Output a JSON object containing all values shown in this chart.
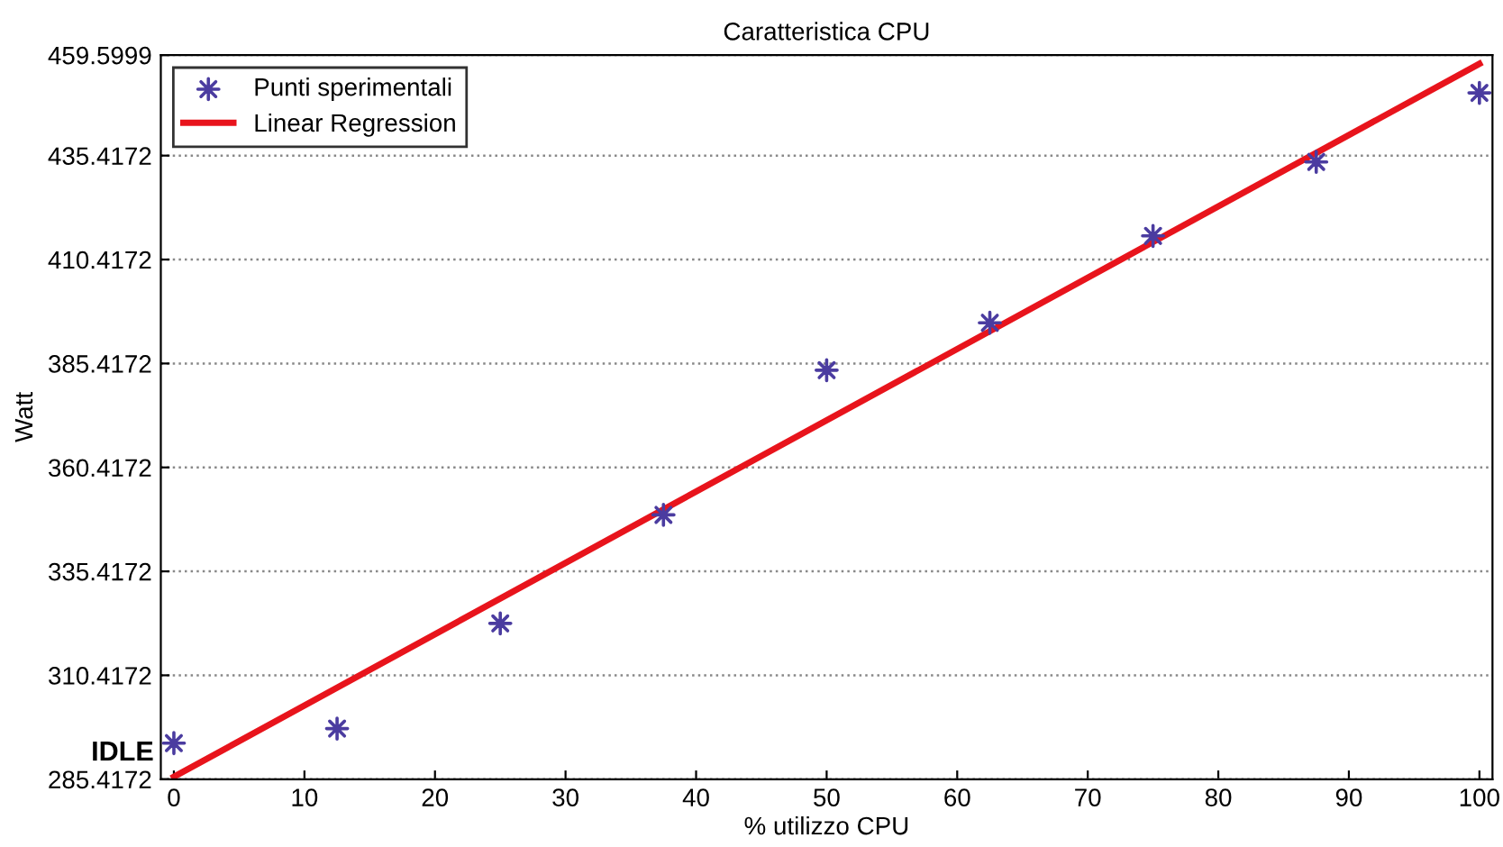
{
  "chart_data": {
    "type": "scatter",
    "title": "Caratteristica CPU",
    "xlabel": "% utilizzo CPU",
    "ylabel": "Watt",
    "xlim": [
      -1,
      101
    ],
    "xticks": [
      0,
      10,
      20,
      30,
      40,
      50,
      60,
      70,
      80,
      90,
      100
    ],
    "ylim": [
      285.4172,
      459.5999
    ],
    "yticks": [
      285.4172,
      310.4172,
      335.4172,
      360.4172,
      385.4172,
      410.4172,
      435.4172,
      459.5999
    ],
    "grid": "y",
    "legend": "top left",
    "series": [
      {
        "name": "Punti sperimentali",
        "marker": "star",
        "color": "#4b3ca0",
        "x": [
          0,
          12.5,
          25,
          37.5,
          50,
          62.5,
          75,
          87.5,
          100
        ],
        "values": [
          294.1,
          297.6,
          322.9,
          349.0,
          383.8,
          395.2,
          416.1,
          433.9,
          450.5
        ]
      },
      {
        "name": "Linear Regression",
        "type": "line",
        "color": "#e8141c",
        "line_style": "solid",
        "x": [
          0,
          100
        ],
        "values": [
          286.0,
          457.5
        ]
      }
    ],
    "annotations": [
      {
        "text": "IDLE",
        "x": 0,
        "y": 294.1
      }
    ]
  }
}
